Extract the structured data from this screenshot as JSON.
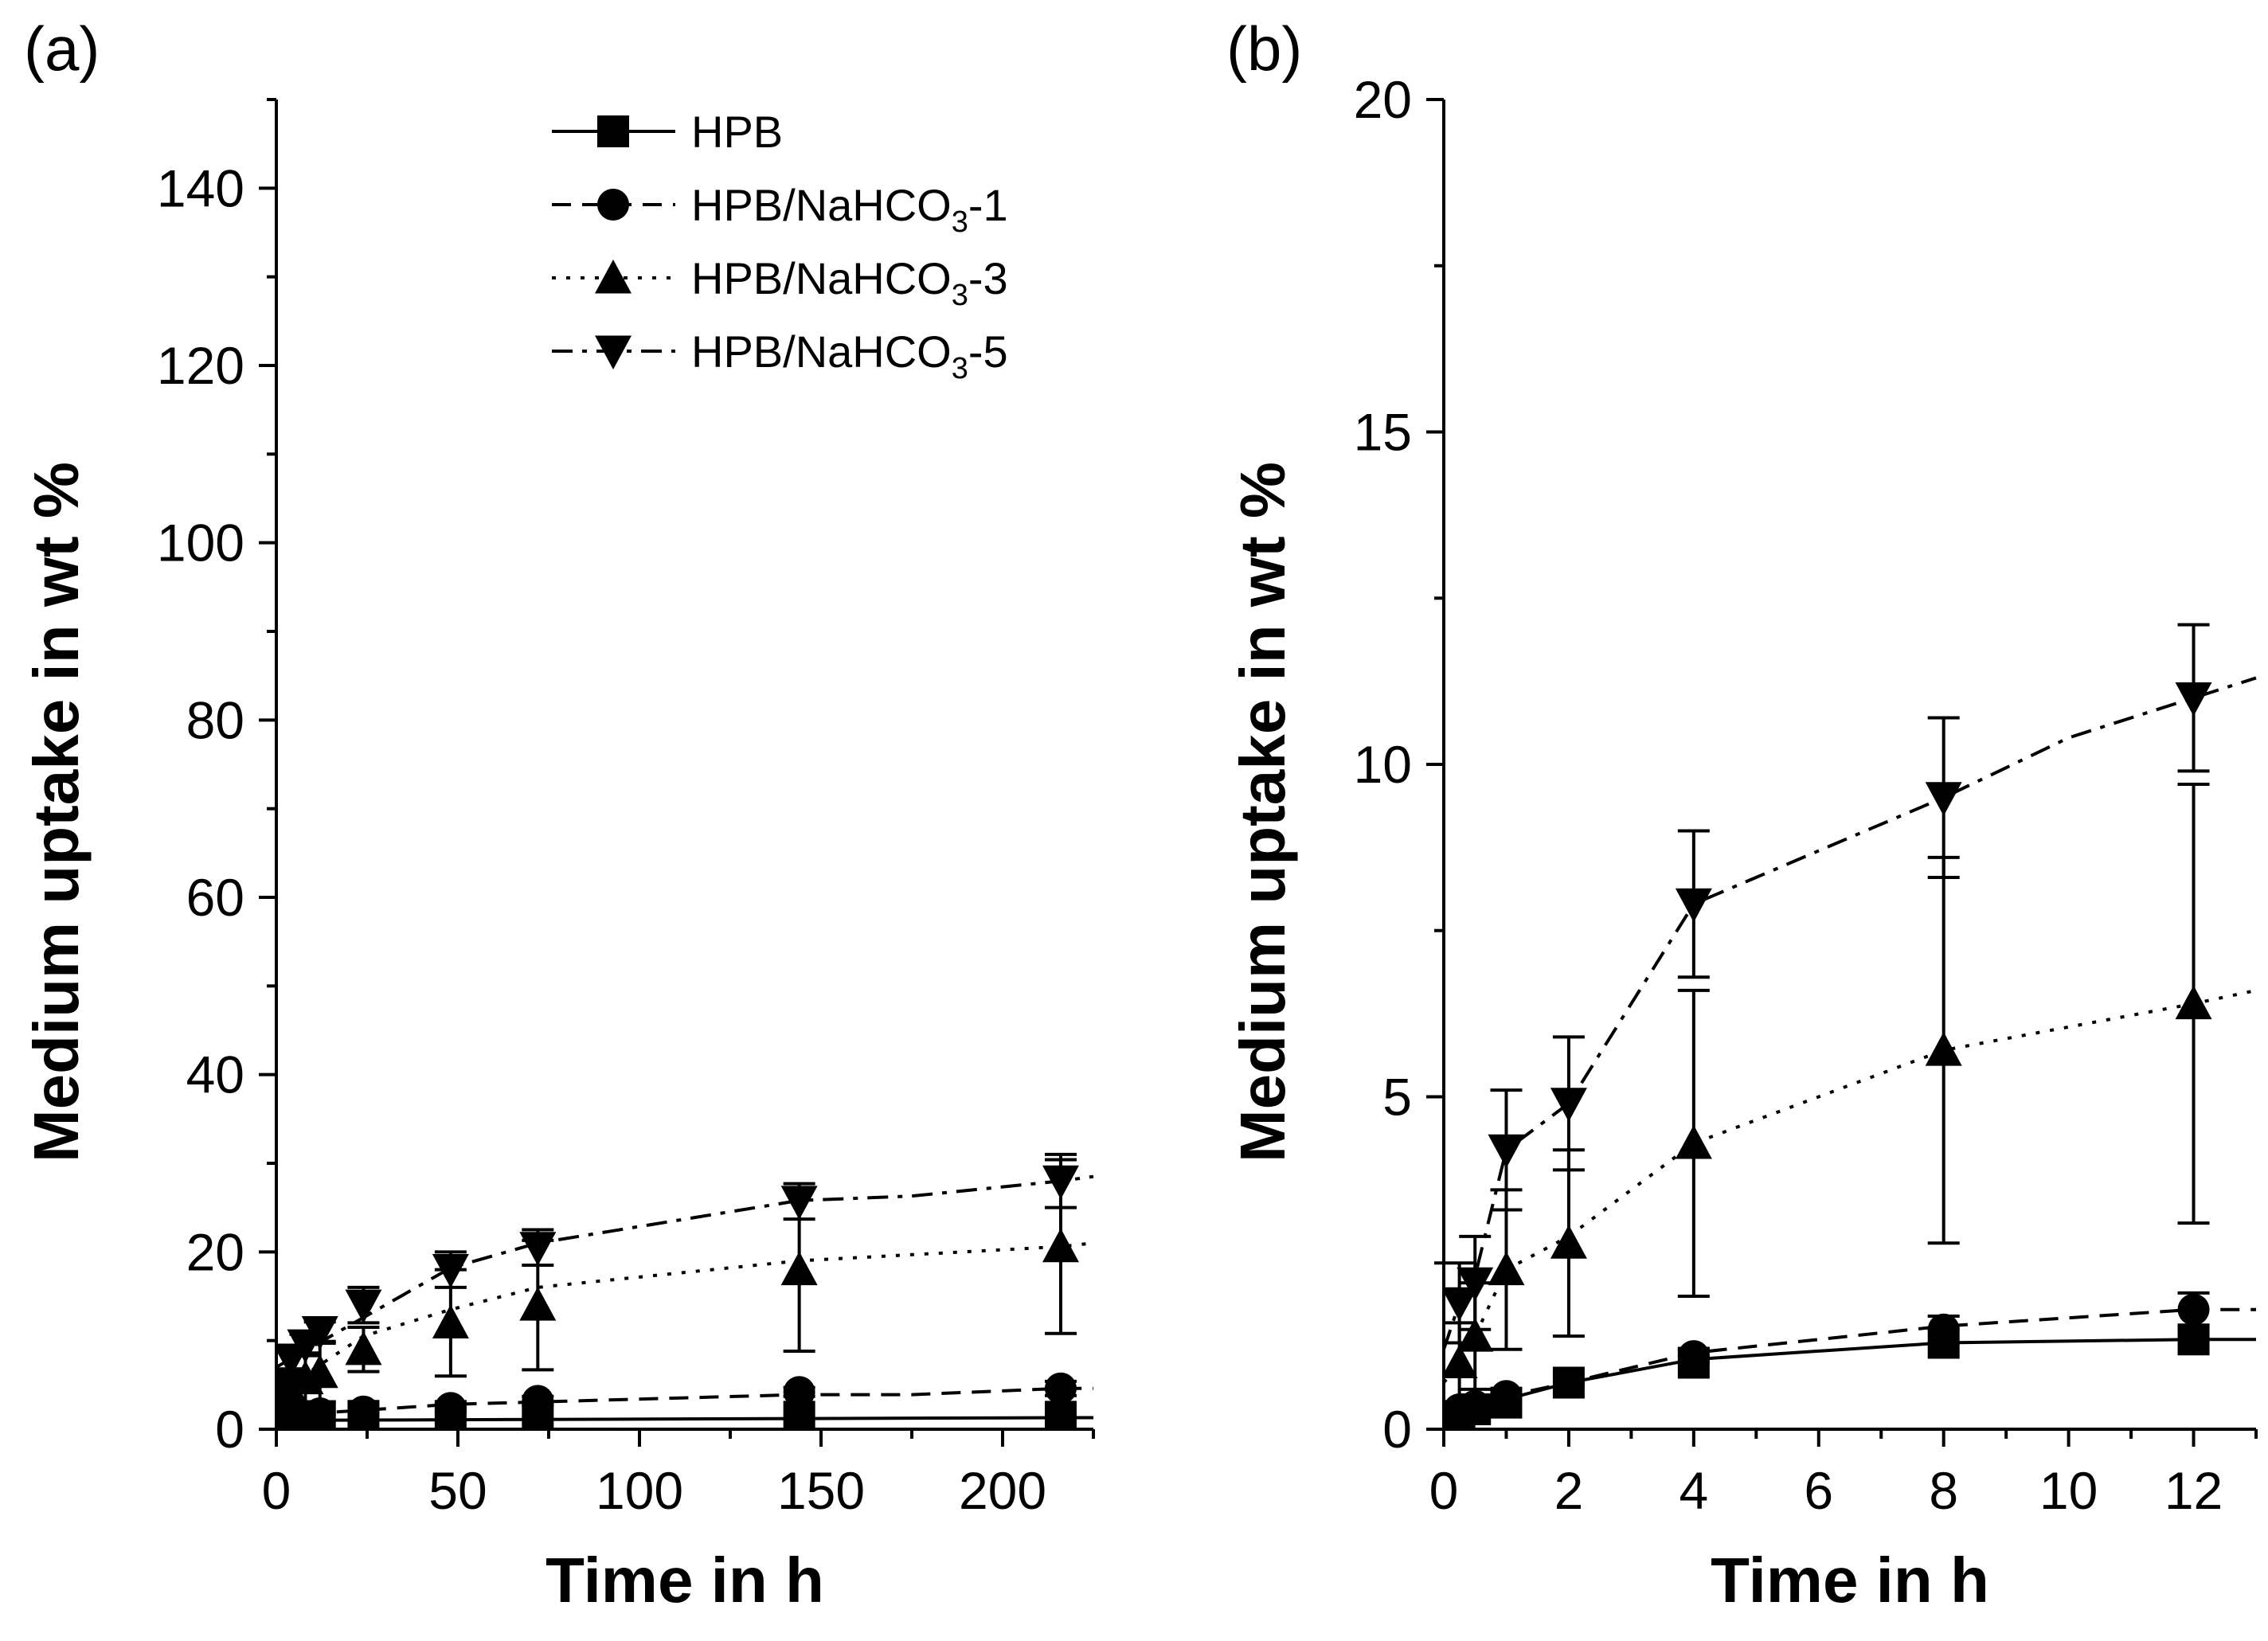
{
  "chart_data": [
    {
      "type": "line",
      "panel_label": "(a)",
      "xlabel": "Time in h",
      "ylabel": "Medium uptake in wt %",
      "xlim": [
        0,
        225
      ],
      "ylim": [
        0,
        150
      ],
      "x_ticks": [
        "0",
        "50",
        "100",
        "150",
        "200"
      ],
      "y_ticks": [
        "0",
        "20",
        "40",
        "60",
        "80",
        "100",
        "120",
        "140"
      ],
      "legend": {
        "position": "top-center",
        "entries": [
          {
            "series": "HPB",
            "text": "HPB",
            "sub": "",
            "suffix": ""
          },
          {
            "series": "HPB/NaHCO3-1",
            "text": "HPB/NaHCO",
            "sub": "3",
            "suffix": "-1"
          },
          {
            "series": "HPB/NaHCO3-3",
            "text": "HPB/NaHCO",
            "sub": "3",
            "suffix": "-3"
          },
          {
            "series": "HPB/NaHCO3-5",
            "text": "HPB/NaHCO",
            "sub": "3",
            "suffix": "-5"
          }
        ]
      },
      "series": [
        {
          "name": "HPB",
          "marker": "square",
          "dash": "solid",
          "x": [
            0.25,
            0.5,
            1,
            2,
            4,
            8,
            12,
            24,
            48,
            72,
            144,
            216
          ],
          "y": [
            0.2,
            0.3,
            0.4,
            0.7,
            1.0,
            1.3,
            1.4,
            1.5,
            1.5,
            1.4,
            1.4,
            1.4
          ],
          "err": [
            0,
            0,
            0,
            0,
            0,
            0,
            0,
            0,
            0,
            0,
            0,
            0
          ],
          "line_x": [
            0,
            216,
            225
          ],
          "line_y": [
            1.0,
            1.3,
            1.3
          ]
        },
        {
          "name": "HPB/NaHCO3-1",
          "marker": "circle",
          "dash": "dashed",
          "x": [
            0.25,
            0.5,
            1,
            2,
            4,
            8,
            12,
            24,
            48,
            72,
            144,
            216
          ],
          "y": [
            0.3,
            0.4,
            0.5,
            0.7,
            1.1,
            1.5,
            1.8,
            2.0,
            2.4,
            3.2,
            4.2,
            4.6
          ],
          "err": [
            0,
            0,
            0,
            0,
            0,
            0,
            0,
            0,
            0.5,
            0.5,
            0.5,
            0.8
          ],
          "line_x": [
            0,
            48,
            144,
            175,
            216,
            225
          ],
          "line_y": [
            1.5,
            2.8,
            3.9,
            3.9,
            4.6,
            4.6
          ]
        },
        {
          "name": "HPB/NaHCO3-3",
          "marker": "triangle-up",
          "dash": "dotted",
          "x": [
            0.25,
            0.5,
            1,
            2,
            4,
            8,
            12,
            24,
            48,
            72,
            144,
            216
          ],
          "y": [
            1.0,
            1.4,
            2.4,
            2.8,
            4.3,
            5.7,
            6.4,
            9.0,
            12.0,
            14.0,
            18.0,
            20.6
          ],
          "err": [
            0.6,
            0.8,
            1.2,
            1.4,
            2.3,
            2.9,
            3.3,
            2.5,
            6.0,
            7.3,
            9.2,
            9.8
          ],
          "line_x": [
            0,
            24,
            48,
            72,
            144,
            216,
            225
          ],
          "line_y": [
            4.0,
            10.5,
            13.5,
            16.0,
            19.0,
            20.6,
            21.0
          ]
        },
        {
          "name": "HPB/NaHCO3-5",
          "marker": "triangle-down",
          "dash": "dashdot",
          "x": [
            0.25,
            0.5,
            1,
            2,
            4,
            8,
            12,
            24,
            48,
            72,
            144,
            216
          ],
          "y": [
            1.9,
            2.2,
            4.2,
            4.9,
            7.9,
            9.5,
            11.0,
            14.0,
            18.0,
            20.5,
            25.7,
            28.0
          ],
          "err": [
            0.6,
            0.7,
            0.9,
            1.0,
            1.1,
            1.2,
            1.1,
            2.0,
            2.0,
            2.0,
            2.0,
            3.0
          ],
          "line_x": [
            0,
            48,
            72,
            144,
            175,
            216,
            225
          ],
          "line_y": [
            7.0,
            18.2,
            21.0,
            25.8,
            26.3,
            28.0,
            28.5
          ]
        }
      ]
    },
    {
      "type": "line",
      "panel_label": "(b)",
      "xlabel": "Time in h",
      "ylabel": "Medium uptake in wt %",
      "xlim": [
        0,
        13
      ],
      "ylim": [
        0,
        20
      ],
      "x_ticks": [
        "0",
        "2",
        "4",
        "6",
        "8",
        "10",
        "12"
      ],
      "y_ticks": [
        "0",
        "5",
        "10",
        "15",
        "20"
      ],
      "series": [
        {
          "name": "HPB",
          "marker": "square",
          "dash": "solid",
          "x": [
            0.25,
            0.5,
            1,
            2,
            4,
            8,
            12
          ],
          "y": [
            0.2,
            0.3,
            0.4,
            0.7,
            1.0,
            1.3,
            1.35
          ],
          "err": [
            0,
            0,
            0,
            0,
            0,
            0,
            0
          ],
          "line_x": [
            0,
            0.25,
            0.5,
            1,
            2,
            4,
            8,
            12,
            13
          ],
          "line_y": [
            0.1,
            0.2,
            0.3,
            0.45,
            0.7,
            1.05,
            1.3,
            1.35,
            1.35
          ]
        },
        {
          "name": "HPB/NaHCO3-1",
          "marker": "circle",
          "dash": "dashed",
          "x": [
            0.25,
            0.5,
            1,
            2,
            4,
            8,
            12
          ],
          "y": [
            0.3,
            0.35,
            0.5,
            0.7,
            1.1,
            1.5,
            1.8
          ],
          "err": [
            0,
            0,
            0,
            0,
            0.1,
            0.2,
            0.25
          ],
          "line_x": [
            0,
            0.25,
            0.5,
            1,
            2,
            4,
            8,
            12,
            13
          ],
          "line_y": [
            0.2,
            0.3,
            0.35,
            0.5,
            0.7,
            1.15,
            1.55,
            1.8,
            1.8
          ]
        },
        {
          "name": "HPB/NaHCO3-3",
          "marker": "triangle-up",
          "dash": "dotted",
          "x": [
            0.25,
            0.5,
            1,
            2,
            4,
            8,
            12
          ],
          "y": [
            1.0,
            1.4,
            2.4,
            2.8,
            4.3,
            5.7,
            6.4
          ],
          "err": [
            0.6,
            0.8,
            1.2,
            1.4,
            2.3,
            2.9,
            3.3
          ],
          "line_x": [
            0,
            0.25,
            0.5,
            1,
            2,
            4,
            8,
            12,
            13
          ],
          "line_y": [
            0.7,
            1.0,
            1.4,
            2.4,
            2.9,
            4.3,
            5.7,
            6.4,
            6.6
          ]
        },
        {
          "name": "HPB/NaHCO3-5",
          "marker": "triangle-down",
          "dash": "dashdot",
          "x": [
            0.25,
            0.5,
            1,
            2,
            4,
            8,
            12
          ],
          "y": [
            1.9,
            2.2,
            4.2,
            4.9,
            7.9,
            9.5,
            11.0
          ],
          "err": [
            0.6,
            0.7,
            0.9,
            1.0,
            1.1,
            1.2,
            1.1
          ],
          "line_x": [
            0,
            0.25,
            0.5,
            1,
            2,
            4,
            8,
            10,
            12,
            13
          ],
          "line_y": [
            1.2,
            1.9,
            2.3,
            4.2,
            4.9,
            7.9,
            9.5,
            10.4,
            11.0,
            11.3
          ]
        }
      ]
    }
  ]
}
